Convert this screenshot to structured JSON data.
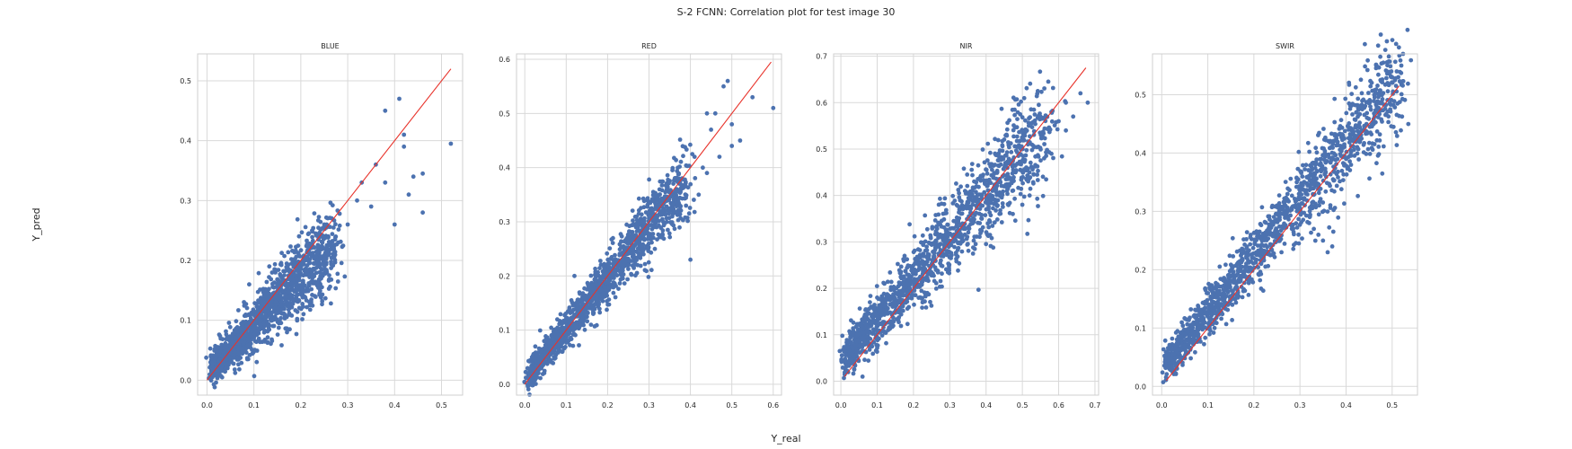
{
  "suptitle": "S-2 FCNN: Correlation plot for test image 30",
  "xlabel": "Y_real",
  "ylabel": "Y_pred",
  "colors": {
    "points": "#4c72b0",
    "identity_line": "#e8322a",
    "grid": "#d9d9d9",
    "frame": "#cfcfcf"
  },
  "chart_data": [
    {
      "type": "scatter",
      "title": "BLUE",
      "xlim": [
        -0.02,
        0.545
      ],
      "ylim": [
        -0.025,
        0.545
      ],
      "xticks": [
        0.0,
        0.1,
        0.2,
        0.3,
        0.4,
        0.5
      ],
      "xtick_labels": [
        "0.0",
        "0.1",
        "0.2",
        "0.3",
        "0.4",
        "0.5"
      ],
      "yticks": [
        0.0,
        0.1,
        0.2,
        0.3,
        0.4,
        0.5
      ],
      "ytick_labels": [
        "0.0",
        "0.1",
        "0.2",
        "0.3",
        "0.4",
        "0.5"
      ],
      "grid": true,
      "identity_line": [
        [
          0.0,
          0.0
        ],
        [
          0.52,
          0.52
        ]
      ],
      "cloud": {
        "x_range": [
          0.01,
          0.27
        ],
        "slope": 0.8,
        "intercept": 0.012,
        "spread": 0.022
      },
      "outliers": [
        [
          0.52,
          0.395
        ],
        [
          0.46,
          0.345
        ],
        [
          0.44,
          0.34
        ],
        [
          0.42,
          0.41
        ],
        [
          0.46,
          0.28
        ],
        [
          0.4,
          0.26
        ],
        [
          0.38,
          0.45
        ],
        [
          0.41,
          0.47
        ],
        [
          0.33,
          0.33
        ],
        [
          0.35,
          0.29
        ],
        [
          0.3,
          0.26
        ],
        [
          0.28,
          0.23
        ],
        [
          0.36,
          0.36
        ],
        [
          0.32,
          0.3
        ],
        [
          0.25,
          0.26
        ],
        [
          0.24,
          0.18
        ],
        [
          0.38,
          0.33
        ],
        [
          0.43,
          0.31
        ],
        [
          0.09,
          0.16
        ],
        [
          0.42,
          0.39
        ]
      ]
    },
    {
      "type": "scatter",
      "title": "RED",
      "xlim": [
        -0.02,
        0.62
      ],
      "ylim": [
        -0.02,
        0.61
      ],
      "xticks": [
        0.0,
        0.1,
        0.2,
        0.3,
        0.4,
        0.5,
        0.6
      ],
      "xtick_labels": [
        "0.0",
        "0.1",
        "0.2",
        "0.3",
        "0.4",
        "0.5",
        "0.6"
      ],
      "yticks": [
        0.0,
        0.1,
        0.2,
        0.3,
        0.4,
        0.5,
        0.6
      ],
      "ytick_labels": [
        "0.0",
        "0.1",
        "0.2",
        "0.3",
        "0.4",
        "0.5",
        "0.6"
      ],
      "grid": true,
      "identity_line": [
        [
          0.0,
          0.0
        ],
        [
          0.595,
          0.595
        ]
      ],
      "cloud": {
        "x_range": [
          0.005,
          0.39
        ],
        "slope": 0.95,
        "intercept": 0.008,
        "spread": 0.02
      },
      "outliers": [
        [
          0.6,
          0.51
        ],
        [
          0.55,
          0.53
        ],
        [
          0.49,
          0.56
        ],
        [
          0.48,
          0.55
        ],
        [
          0.52,
          0.45
        ],
        [
          0.5,
          0.48
        ],
        [
          0.47,
          0.42
        ],
        [
          0.45,
          0.47
        ],
        [
          0.43,
          0.4
        ],
        [
          0.42,
          0.35
        ],
        [
          0.44,
          0.39
        ],
        [
          0.4,
          0.23
        ],
        [
          0.37,
          0.33
        ],
        [
          0.41,
          0.42
        ],
        [
          0.46,
          0.5
        ],
        [
          0.5,
          0.44
        ],
        [
          0.44,
          0.5
        ],
        [
          0.38,
          0.38
        ],
        [
          0.12,
          0.2
        ],
        [
          0.36,
          0.32
        ]
      ]
    },
    {
      "type": "scatter",
      "title": "NIR",
      "xlim": [
        -0.02,
        0.71
      ],
      "ylim": [
        -0.03,
        0.705
      ],
      "xticks": [
        0.0,
        0.1,
        0.2,
        0.3,
        0.4,
        0.5,
        0.6,
        0.7
      ],
      "xtick_labels": [
        "0.0",
        "0.1",
        "0.2",
        "0.3",
        "0.4",
        "0.5",
        "0.6",
        "0.7"
      ],
      "yticks": [
        0.0,
        0.1,
        0.2,
        0.3,
        0.4,
        0.5,
        0.6,
        0.7
      ],
      "ytick_labels": [
        "0.0",
        "0.1",
        "0.2",
        "0.3",
        "0.4",
        "0.5",
        "0.6",
        "0.7"
      ],
      "grid": true,
      "identity_line": [
        [
          0.01,
          0.01
        ],
        [
          0.675,
          0.675
        ]
      ],
      "cloud": {
        "x_range": [
          0.01,
          0.56
        ],
        "slope": 0.9,
        "intercept": 0.04,
        "spread": 0.035
      },
      "outliers": [
        [
          0.68,
          0.6
        ],
        [
          0.66,
          0.62
        ],
        [
          0.64,
          0.57
        ],
        [
          0.62,
          0.54
        ],
        [
          0.6,
          0.56
        ],
        [
          0.58,
          0.58
        ],
        [
          0.55,
          0.57
        ],
        [
          0.62,
          0.6
        ],
        [
          0.56,
          0.48
        ],
        [
          0.58,
          0.49
        ],
        [
          0.08,
          0.17
        ],
        [
          0.1,
          0.18
        ],
        [
          0.12,
          0.21
        ],
        [
          0.5,
          0.38
        ],
        [
          0.52,
          0.4
        ]
      ]
    },
    {
      "type": "scatter",
      "title": "SWIR",
      "xlim": [
        -0.02,
        0.555
      ],
      "ylim": [
        -0.015,
        0.57
      ],
      "xticks": [
        0.0,
        0.1,
        0.2,
        0.3,
        0.4,
        0.5
      ],
      "xtick_labels": [
        "0.0",
        "0.1",
        "0.2",
        "0.3",
        "0.4",
        "0.5"
      ],
      "yticks": [
        0.0,
        0.1,
        0.2,
        0.3,
        0.4,
        0.5
      ],
      "ytick_labels": [
        "0.0",
        "0.1",
        "0.2",
        "0.3",
        "0.4",
        "0.5"
      ],
      "grid": true,
      "identity_line": [
        [
          0.01,
          0.01
        ],
        [
          0.515,
          0.515
        ]
      ],
      "cloud": {
        "x_range": [
          0.01,
          0.525
        ],
        "slope": 0.96,
        "intercept": 0.03,
        "spread": 0.026
      },
      "outliers": [
        [
          0.52,
          0.55
        ],
        [
          0.51,
          0.54
        ],
        [
          0.5,
          0.53
        ],
        [
          0.49,
          0.52
        ],
        [
          0.47,
          0.5
        ],
        [
          0.43,
          0.42
        ],
        [
          0.4,
          0.39
        ],
        [
          0.37,
          0.24
        ],
        [
          0.35,
          0.25
        ],
        [
          0.36,
          0.23
        ],
        [
          0.34,
          0.26
        ],
        [
          0.32,
          0.28
        ],
        [
          0.33,
          0.27
        ],
        [
          0.46,
          0.45
        ],
        [
          0.41,
          0.43
        ],
        [
          0.44,
          0.48
        ]
      ]
    }
  ]
}
